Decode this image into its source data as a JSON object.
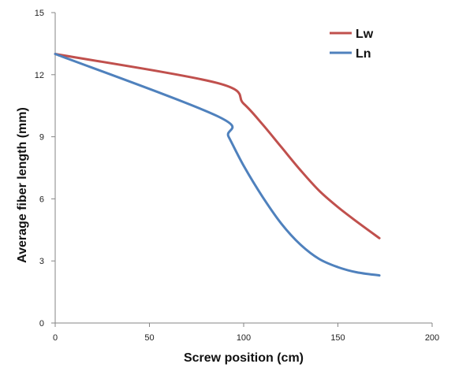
{
  "chart_data": {
    "type": "line",
    "xlabel": "Screw position  (cm)",
    "ylabel": "Average fiber length (mm)",
    "xlim": [
      0,
      200
    ],
    "ylim": [
      0,
      15
    ],
    "xticks": [
      0,
      50,
      100,
      150,
      200
    ],
    "yticks": [
      0,
      3,
      6,
      9,
      12,
      15
    ],
    "grid": false,
    "legend_position": "top-right",
    "series": [
      {
        "name": "Lw",
        "color": "#c0504d",
        "x": [
          0,
          86,
          100,
          110,
          120,
          130,
          140,
          150,
          160,
          172
        ],
        "y": [
          13.0,
          11.6,
          10.6,
          9.6,
          8.5,
          7.4,
          6.4,
          5.6,
          4.9,
          4.1
        ]
      },
      {
        "name": "Ln",
        "color": "#4f81bd",
        "x": [
          0,
          86,
          92,
          100,
          110,
          120,
          130,
          140,
          150,
          160,
          172
        ],
        "y": [
          13.0,
          10.0,
          9.0,
          7.6,
          6.1,
          4.8,
          3.8,
          3.1,
          2.7,
          2.45,
          2.3
        ]
      }
    ]
  }
}
